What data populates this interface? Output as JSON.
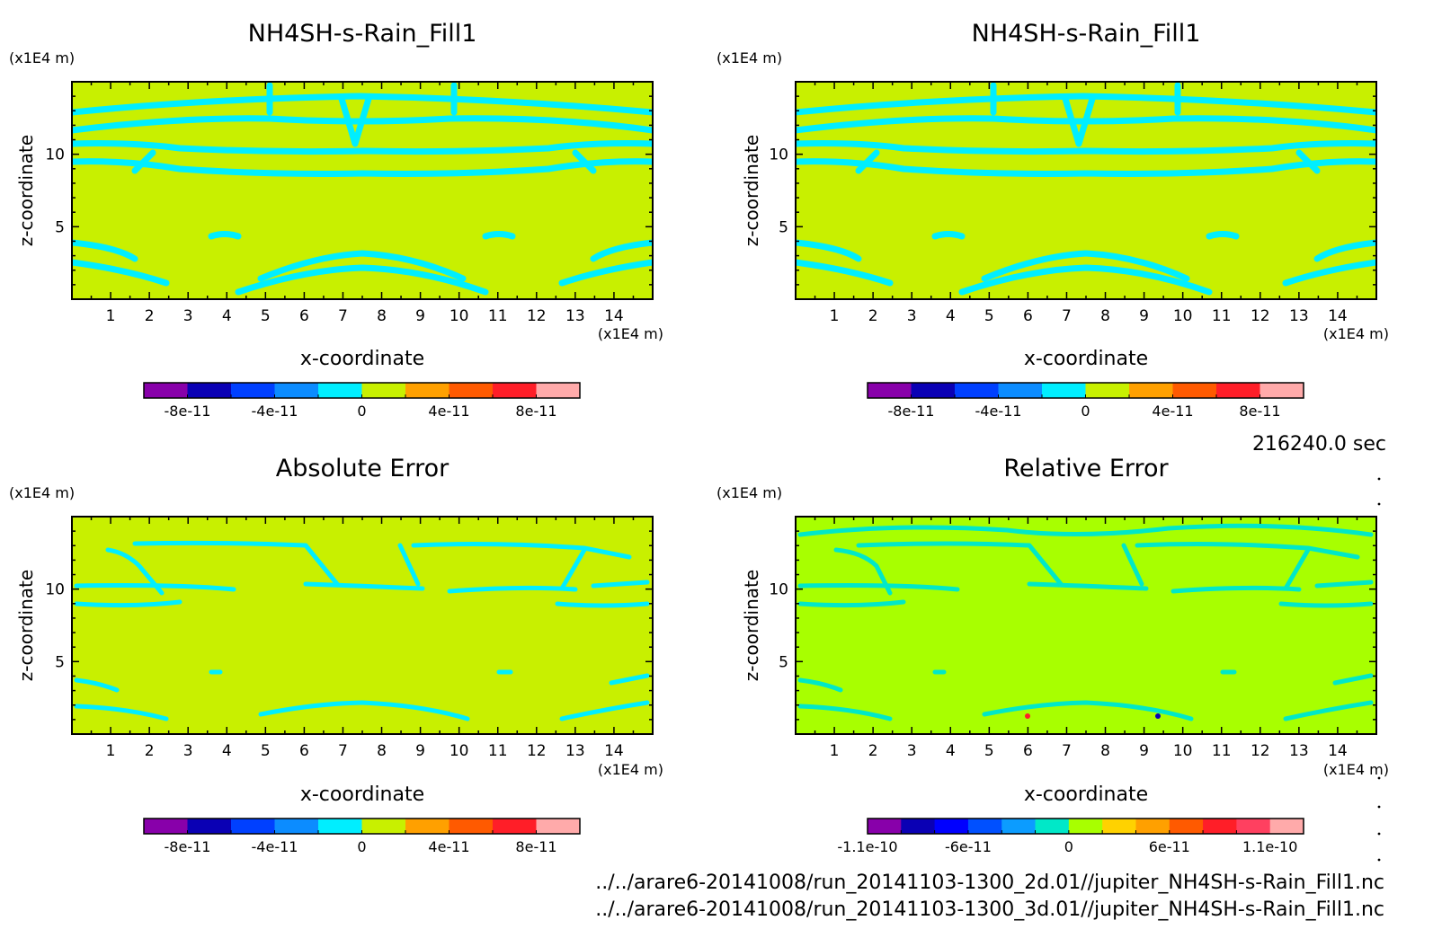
{
  "figure": {
    "time_label": "216240.0 sec",
    "footer_lines": [
      "../../arare6-20141008/run_20141103-1300_2d.01//jupiter_NH4SH-s-Rain_Fill1.nc",
      "../../arare6-20141008/run_20141103-1300_3d.01//jupiter_NH4SH-s-Rain_Fill1.nc"
    ]
  },
  "chart_data": [
    {
      "type": "heatmap",
      "title": "NH4SH-s-Rain_Fill1",
      "xlabel": "x-coordinate",
      "ylabel": "z-coordinate",
      "x_unit": "(x1E4 m)",
      "y_unit": "(x1E4 m)",
      "xlim": [
        0,
        15
      ],
      "ylim": [
        0,
        15
      ],
      "x_ticks": [
        1,
        2,
        3,
        4,
        5,
        6,
        7,
        8,
        9,
        10,
        11,
        12,
        13,
        14
      ],
      "y_ticks": [
        5,
        10
      ],
      "field_levels": [
        "0",
        "0 to 2e-11"
      ],
      "colorbar": {
        "bounds": [
          -1e-10,
          -8e-11,
          -6e-11,
          -4e-11,
          -2e-11,
          0,
          2e-11,
          4e-11,
          6e-11,
          8e-11,
          1e-10
        ],
        "colors": [
          "#8800aa",
          "#0a00b4",
          "#0040ff",
          "#0c8cff",
          "#00eeff",
          "#c8f000",
          "#ffa000",
          "#ff5a00",
          "#ff1e28",
          "#ffaaaa"
        ],
        "tick_labels": [
          "-8e-11",
          "-4e-11",
          "0",
          "4e-11",
          "8e-11"
        ],
        "tick_values": [
          -8e-11,
          -4e-11,
          0,
          4e-11,
          8e-11
        ]
      }
    },
    {
      "type": "heatmap",
      "title": "NH4SH-s-Rain_Fill1",
      "xlabel": "x-coordinate",
      "ylabel": "z-coordinate",
      "x_unit": "(x1E4 m)",
      "y_unit": "(x1E4 m)",
      "xlim": [
        0,
        15
      ],
      "ylim": [
        0,
        15
      ],
      "x_ticks": [
        1,
        2,
        3,
        4,
        5,
        6,
        7,
        8,
        9,
        10,
        11,
        12,
        13,
        14
      ],
      "y_ticks": [
        5,
        10
      ],
      "field_levels": [
        "0",
        "0 to 2e-11"
      ],
      "colorbar": {
        "bounds": [
          -1e-10,
          -8e-11,
          -6e-11,
          -4e-11,
          -2e-11,
          0,
          2e-11,
          4e-11,
          6e-11,
          8e-11,
          1e-10
        ],
        "colors": [
          "#8800aa",
          "#0a00b4",
          "#0040ff",
          "#0c8cff",
          "#00eeff",
          "#c8f000",
          "#ffa000",
          "#ff5a00",
          "#ff1e28",
          "#ffaaaa"
        ],
        "tick_labels": [
          "-8e-11",
          "-4e-11",
          "0",
          "4e-11",
          "8e-11"
        ],
        "tick_values": [
          -8e-11,
          -4e-11,
          0,
          4e-11,
          8e-11
        ]
      }
    },
    {
      "type": "heatmap",
      "title": "Absolute Error",
      "xlabel": "x-coordinate",
      "ylabel": "z-coordinate",
      "x_unit": "(x1E4 m)",
      "y_unit": "(x1E4 m)",
      "xlim": [
        0,
        15
      ],
      "ylim": [
        0,
        15
      ],
      "x_ticks": [
        1,
        2,
        3,
        4,
        5,
        6,
        7,
        8,
        9,
        10,
        11,
        12,
        13,
        14
      ],
      "y_ticks": [
        5,
        10
      ],
      "field_levels": [
        "0",
        "0 to 2e-11"
      ],
      "colorbar": {
        "bounds": [
          -1e-10,
          -8e-11,
          -6e-11,
          -4e-11,
          -2e-11,
          0,
          2e-11,
          4e-11,
          6e-11,
          8e-11,
          1e-10
        ],
        "colors": [
          "#8800aa",
          "#0a00b4",
          "#0040ff",
          "#0c8cff",
          "#00eeff",
          "#c8f000",
          "#ffa000",
          "#ff5a00",
          "#ff1e28",
          "#ffaaaa"
        ],
        "tick_labels": [
          "-8e-11",
          "-4e-11",
          "0",
          "4e-11",
          "8e-11"
        ],
        "tick_values": [
          -8e-11,
          -4e-11,
          0,
          4e-11,
          8e-11
        ]
      }
    },
    {
      "type": "heatmap",
      "title": "Relative Error",
      "xlabel": "x-coordinate",
      "ylabel": "z-coordinate",
      "x_unit": "(x1E4 m)",
      "y_unit": "(x1E4 m)",
      "xlim": [
        0,
        15
      ],
      "ylim": [
        0,
        15
      ],
      "x_ticks": [
        1,
        2,
        3,
        4,
        5,
        6,
        7,
        8,
        9,
        10,
        11,
        12,
        13,
        14
      ],
      "y_ticks": [
        5,
        10
      ],
      "field_levels": [
        "-1e-11 to 0",
        "0 to 1e-11"
      ],
      "colorbar": {
        "bounds": [
          -1.1e-10,
          -1e-10,
          -8e-11,
          -6e-11,
          -4e-11,
          -2e-11,
          0,
          2e-11,
          4e-11,
          6e-11,
          8e-11,
          1e-10,
          1.1e-10
        ],
        "colors": [
          "#8800aa",
          "#0a00b4",
          "#0000ff",
          "#0050ff",
          "#0c9cff",
          "#00e8c8",
          "#a8ff00",
          "#ffd200",
          "#ffa000",
          "#ff5a00",
          "#ff1e28",
          "#ff4060",
          "#ffaaaa"
        ],
        "tick_labels": [
          "-1.1e-10",
          "-6e-11",
          "0",
          "6e-11",
          "1.1e-10"
        ],
        "tick_values": [
          -1.1e-10,
          -6e-11,
          0,
          6e-11,
          1.1e-10
        ]
      }
    }
  ]
}
